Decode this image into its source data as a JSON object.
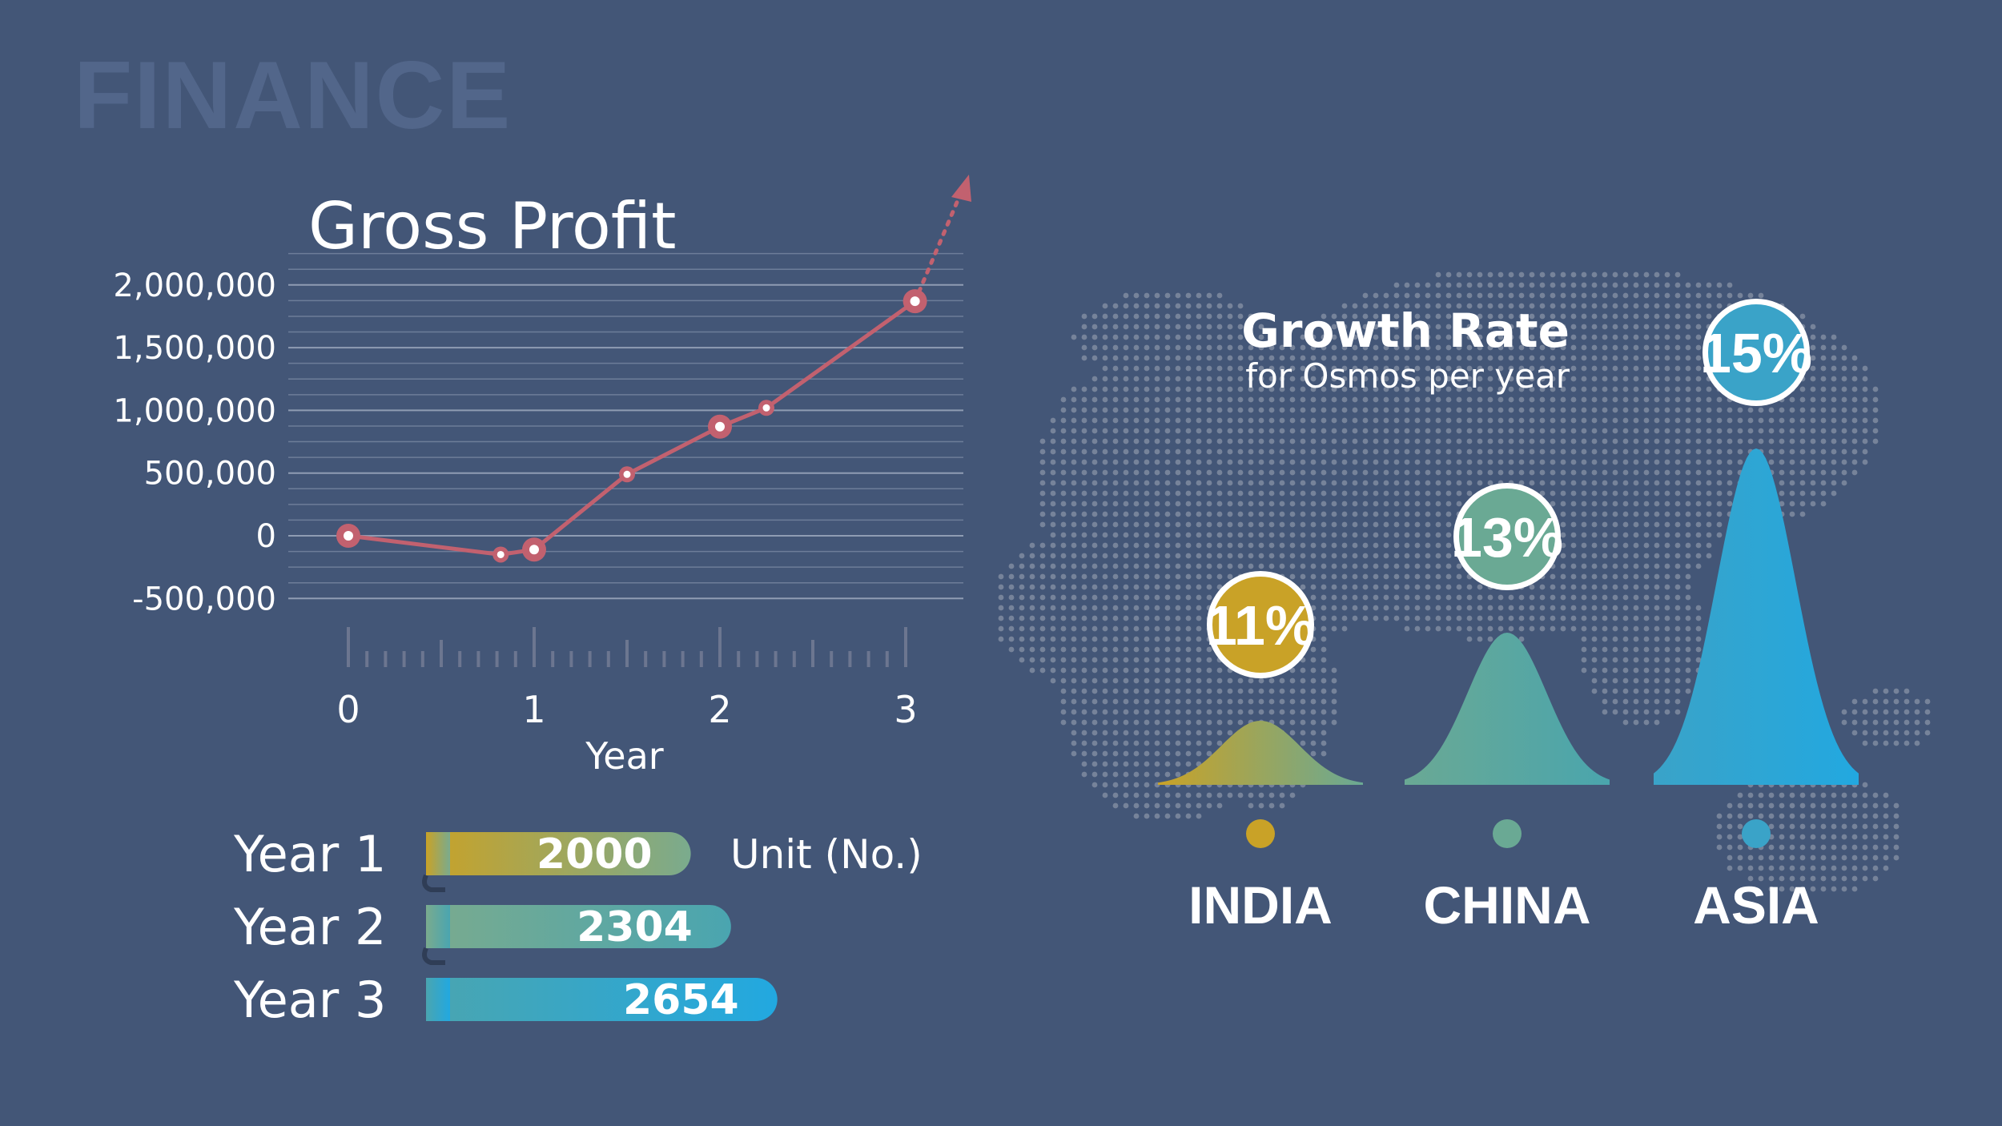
{
  "header": {
    "section_title": "FINANCE"
  },
  "colors": {
    "background": "#435677",
    "line": "#c2616f",
    "grid": "#6d7d99",
    "india": "#c9a227",
    "china": "#6aa994",
    "asia": "#3aa3c8",
    "asia_bright": "#22a8e0",
    "map_dots": "#7f8ba0"
  },
  "chart_data": [
    {
      "type": "line",
      "title": "Gross Profit",
      "xlabel": "Year",
      "ylabel": "",
      "x_ticks": [
        "0",
        "1",
        "2",
        "3"
      ],
      "y_ticks": [
        "2,000,000",
        "1,500,000",
        "1,000,000",
        "500,000",
        "0",
        "-500,000"
      ],
      "ylim": [
        -500000,
        2000000
      ],
      "xlim": [
        0,
        3
      ],
      "grid": true,
      "trend_arrow": "up",
      "series": [
        {
          "x": [
            0,
            0.82,
            1,
            1.5,
            2,
            2.25,
            3.05
          ],
          "y": [
            0,
            -150000,
            -110000,
            490000,
            870000,
            1020000,
            1870000
          ],
          "major_points": [
            0,
            2,
            4,
            6
          ]
        }
      ]
    },
    {
      "type": "bar",
      "orientation": "horizontal",
      "categories": [
        "Year 1",
        "Year 2",
        "Year 3"
      ],
      "values": [
        2000,
        2304,
        2654
      ],
      "unit_label": "Unit (No.)"
    },
    {
      "type": "area",
      "title": "Growth Rate",
      "subtitle": "for Osmos per year",
      "categories": [
        "INDIA",
        "CHINA",
        "ASIA"
      ],
      "values": [
        11,
        13,
        15
      ],
      "value_labels": [
        "11%",
        "13%",
        "15%"
      ],
      "shape": "bell"
    }
  ]
}
